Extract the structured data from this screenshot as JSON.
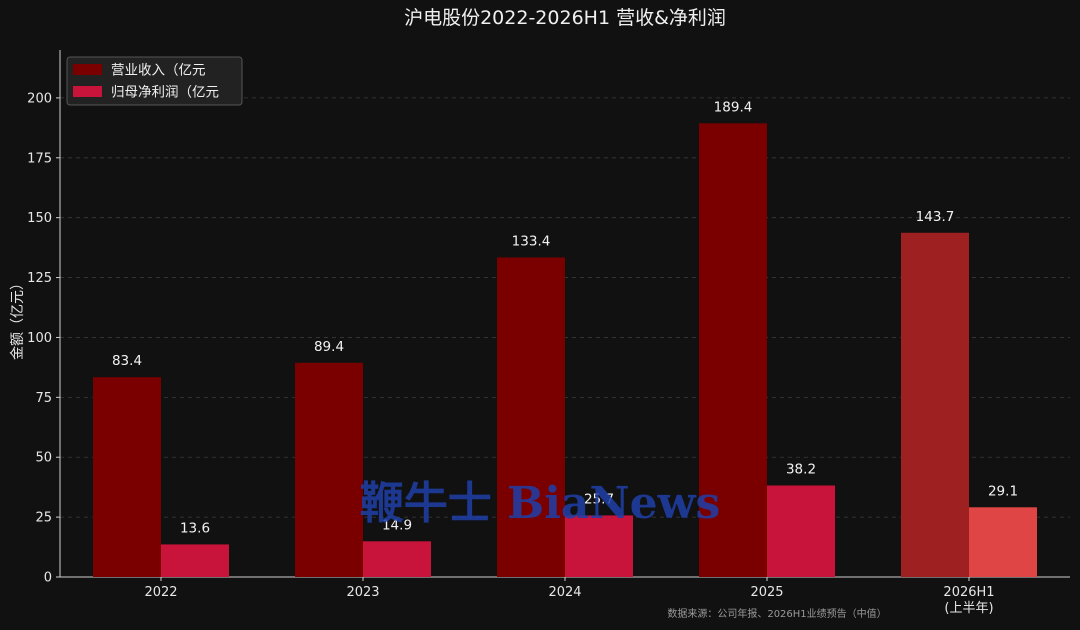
{
  "chart_data": {
    "type": "bar",
    "title": "沪电股份2022-2026H1 营收&净利润",
    "ylabel": "金额（亿元）",
    "xlabel": "",
    "ylim": [
      0,
      220
    ],
    "yticks": [
      0,
      25,
      50,
      75,
      100,
      125,
      150,
      175,
      200
    ],
    "categories": [
      "2022",
      "2023",
      "2024",
      "2025",
      "2026H1\n(上半年)"
    ],
    "series": [
      {
        "name": "营业收入（亿元",
        "values": [
          83.4,
          89.4,
          133.4,
          189.4,
          143.7
        ],
        "colors": [
          "#7a0000",
          "#7a0000",
          "#7a0000",
          "#7a0000",
          "#9e2020"
        ]
      },
      {
        "name": "归母净利润（亿元",
        "values": [
          13.6,
          14.9,
          25.7,
          38.2,
          29.1
        ],
        "colors": [
          "#c8143a",
          "#c8143a",
          "#c8143a",
          "#c8143a",
          "#e04545"
        ]
      }
    ],
    "data_labels": [
      [
        "83.4",
        "89.4",
        "133.4",
        "189.4",
        "143.7"
      ],
      [
        "13.6",
        "14.9",
        "25.7",
        "38.2",
        "29.1"
      ]
    ],
    "grid": true,
    "legend_position": "top-left",
    "source_note": "数据来源：公司年报、2026H1业绩预告（中值）",
    "watermark": "鞭牛士 BiaNews"
  }
}
